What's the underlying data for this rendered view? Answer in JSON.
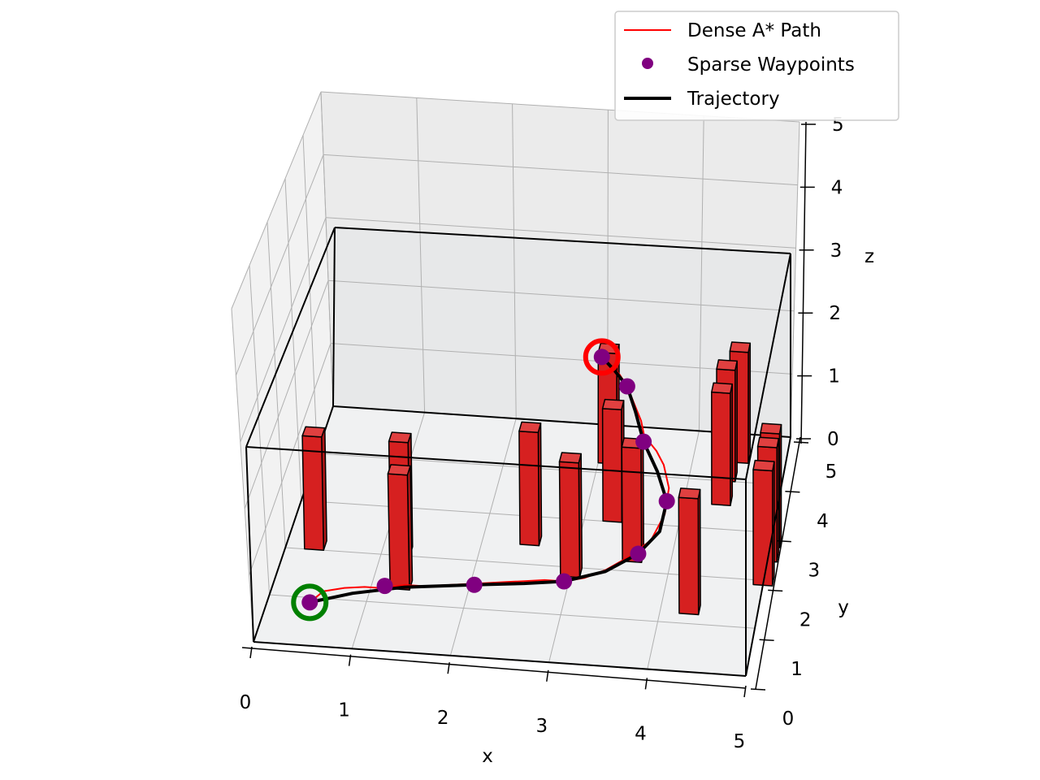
{
  "chart_data": {
    "type": "scatter",
    "subtype": "3d-path-planning",
    "title": "",
    "xlabel": "x",
    "ylabel": "y",
    "zlabel": "z",
    "xlim": [
      0,
      5
    ],
    "ylim": [
      0,
      5
    ],
    "zlim": [
      0,
      5
    ],
    "xticks": [
      "0",
      "1",
      "2",
      "3",
      "4",
      "5"
    ],
    "yticks": [
      "0",
      "1",
      "2",
      "3",
      "4",
      "5"
    ],
    "zticks": [
      "0",
      "1",
      "2",
      "3",
      "4",
      "5"
    ],
    "grid": true,
    "legend_position": "top-right",
    "legend": [
      {
        "label": "Dense A* Path",
        "marker": "line",
        "color": "#ff0000"
      },
      {
        "label": "Sparse Waypoints",
        "marker": "dot",
        "color": "#800080"
      },
      {
        "label": "Trajectory",
        "marker": "thick-line",
        "color": "#000000"
      }
    ],
    "colors": {
      "obstacle": "#d62020",
      "obstacle_edge": "#000000",
      "dense_path": "#ff0000",
      "waypoint": "#800080",
      "trajectory": "#000000",
      "start": "#008000",
      "goal": "#ff0000"
    },
    "start": {
      "x": 0.5,
      "y": 0.5,
      "z": 0.5
    },
    "goal": {
      "x": 3.0,
      "y": 4.5,
      "z": 2.5
    },
    "obstacles": [
      {
        "x": 0.2,
        "y": 2.0,
        "w": 0.2,
        "d": 0.2,
        "h": 3
      },
      {
        "x": 1.1,
        "y": 2.0,
        "w": 0.2,
        "d": 0.2,
        "h": 3
      },
      {
        "x": 1.2,
        "y": 1.3,
        "w": 0.2,
        "d": 0.2,
        "h": 3
      },
      {
        "x": 2.4,
        "y": 2.4,
        "w": 0.2,
        "d": 0.2,
        "h": 3
      },
      {
        "x": 3.0,
        "y": 4.2,
        "w": 0.2,
        "d": 0.2,
        "h": 3
      },
      {
        "x": 3.2,
        "y": 3.0,
        "w": 0.2,
        "d": 0.2,
        "h": 3
      },
      {
        "x": 2.9,
        "y": 1.8,
        "w": 0.2,
        "d": 0.2,
        "h": 3
      },
      {
        "x": 3.5,
        "y": 2.2,
        "w": 0.2,
        "d": 0.2,
        "h": 3
      },
      {
        "x": 4.4,
        "y": 4.4,
        "w": 0.2,
        "d": 0.2,
        "h": 3
      },
      {
        "x": 4.3,
        "y": 4.0,
        "w": 0.2,
        "d": 0.2,
        "h": 3
      },
      {
        "x": 4.3,
        "y": 3.5,
        "w": 0.2,
        "d": 0.2,
        "h": 3
      },
      {
        "x": 4.2,
        "y": 1.2,
        "w": 0.2,
        "d": 0.2,
        "h": 3
      },
      {
        "x": 4.9,
        "y": 2.7,
        "w": 0.2,
        "d": 0.2,
        "h": 3
      },
      {
        "x": 4.9,
        "y": 2.4,
        "w": 0.2,
        "d": 0.2,
        "h": 3
      },
      {
        "x": 4.9,
        "y": 1.9,
        "w": 0.2,
        "d": 0.2,
        "h": 3
      }
    ],
    "series": [
      {
        "name": "Dense A* Path",
        "type": "line",
        "points": [
          [
            0.5,
            0.5,
            0.5
          ],
          [
            0.6,
            0.75,
            0.5
          ],
          [
            0.8,
            0.85,
            0.5
          ],
          [
            1.0,
            0.9,
            0.5
          ],
          [
            1.2,
            0.9,
            0.5
          ],
          [
            1.4,
            1.0,
            0.5
          ],
          [
            1.6,
            1.0,
            0.5
          ],
          [
            1.8,
            1.05,
            0.5
          ],
          [
            2.0,
            1.1,
            0.5
          ],
          [
            2.2,
            1.15,
            0.5
          ],
          [
            2.4,
            1.2,
            0.5
          ],
          [
            2.6,
            1.25,
            0.5
          ],
          [
            2.8,
            1.3,
            0.5
          ],
          [
            3.0,
            1.3,
            0.5
          ],
          [
            3.2,
            1.4,
            0.5
          ],
          [
            3.4,
            1.6,
            0.5
          ],
          [
            3.6,
            1.9,
            0.5
          ],
          [
            3.8,
            2.2,
            0.6
          ],
          [
            3.9,
            2.6,
            0.8
          ],
          [
            3.9,
            3.0,
            1.0
          ],
          [
            3.8,
            3.4,
            1.1
          ],
          [
            3.7,
            3.6,
            1.2
          ],
          [
            3.55,
            3.75,
            1.4
          ],
          [
            3.5,
            3.9,
            1.6
          ],
          [
            3.4,
            4.1,
            1.8
          ],
          [
            3.3,
            4.3,
            2.0
          ],
          [
            3.2,
            4.4,
            2.2
          ],
          [
            3.0,
            4.5,
            2.5
          ]
        ]
      },
      {
        "name": "Sparse Waypoints",
        "type": "scatter",
        "points": [
          [
            0.5,
            0.5,
            0.5
          ],
          [
            1.2,
            0.95,
            0.5
          ],
          [
            2.1,
            1.1,
            0.5
          ],
          [
            3.0,
            1.3,
            0.5
          ],
          [
            3.7,
            1.9,
            0.6
          ],
          [
            3.9,
            2.8,
            0.9
          ],
          [
            3.55,
            3.7,
            1.3
          ],
          [
            3.3,
            4.3,
            2.0
          ],
          [
            3.0,
            4.5,
            2.5
          ]
        ]
      },
      {
        "name": "Trajectory",
        "type": "line",
        "points": [
          [
            0.5,
            0.5,
            0.5
          ],
          [
            0.9,
            0.75,
            0.5
          ],
          [
            1.4,
            0.95,
            0.5
          ],
          [
            2.1,
            1.1,
            0.5
          ],
          [
            2.6,
            1.2,
            0.5
          ],
          [
            3.0,
            1.3,
            0.5
          ],
          [
            3.4,
            1.55,
            0.52
          ],
          [
            3.7,
            1.9,
            0.6
          ],
          [
            3.88,
            2.3,
            0.72
          ],
          [
            3.9,
            2.8,
            0.9
          ],
          [
            3.75,
            3.25,
            1.1
          ],
          [
            3.55,
            3.7,
            1.3
          ],
          [
            3.42,
            4.05,
            1.65
          ],
          [
            3.3,
            4.3,
            2.0
          ],
          [
            3.15,
            4.42,
            2.25
          ],
          [
            3.0,
            4.5,
            2.5
          ]
        ]
      }
    ]
  }
}
